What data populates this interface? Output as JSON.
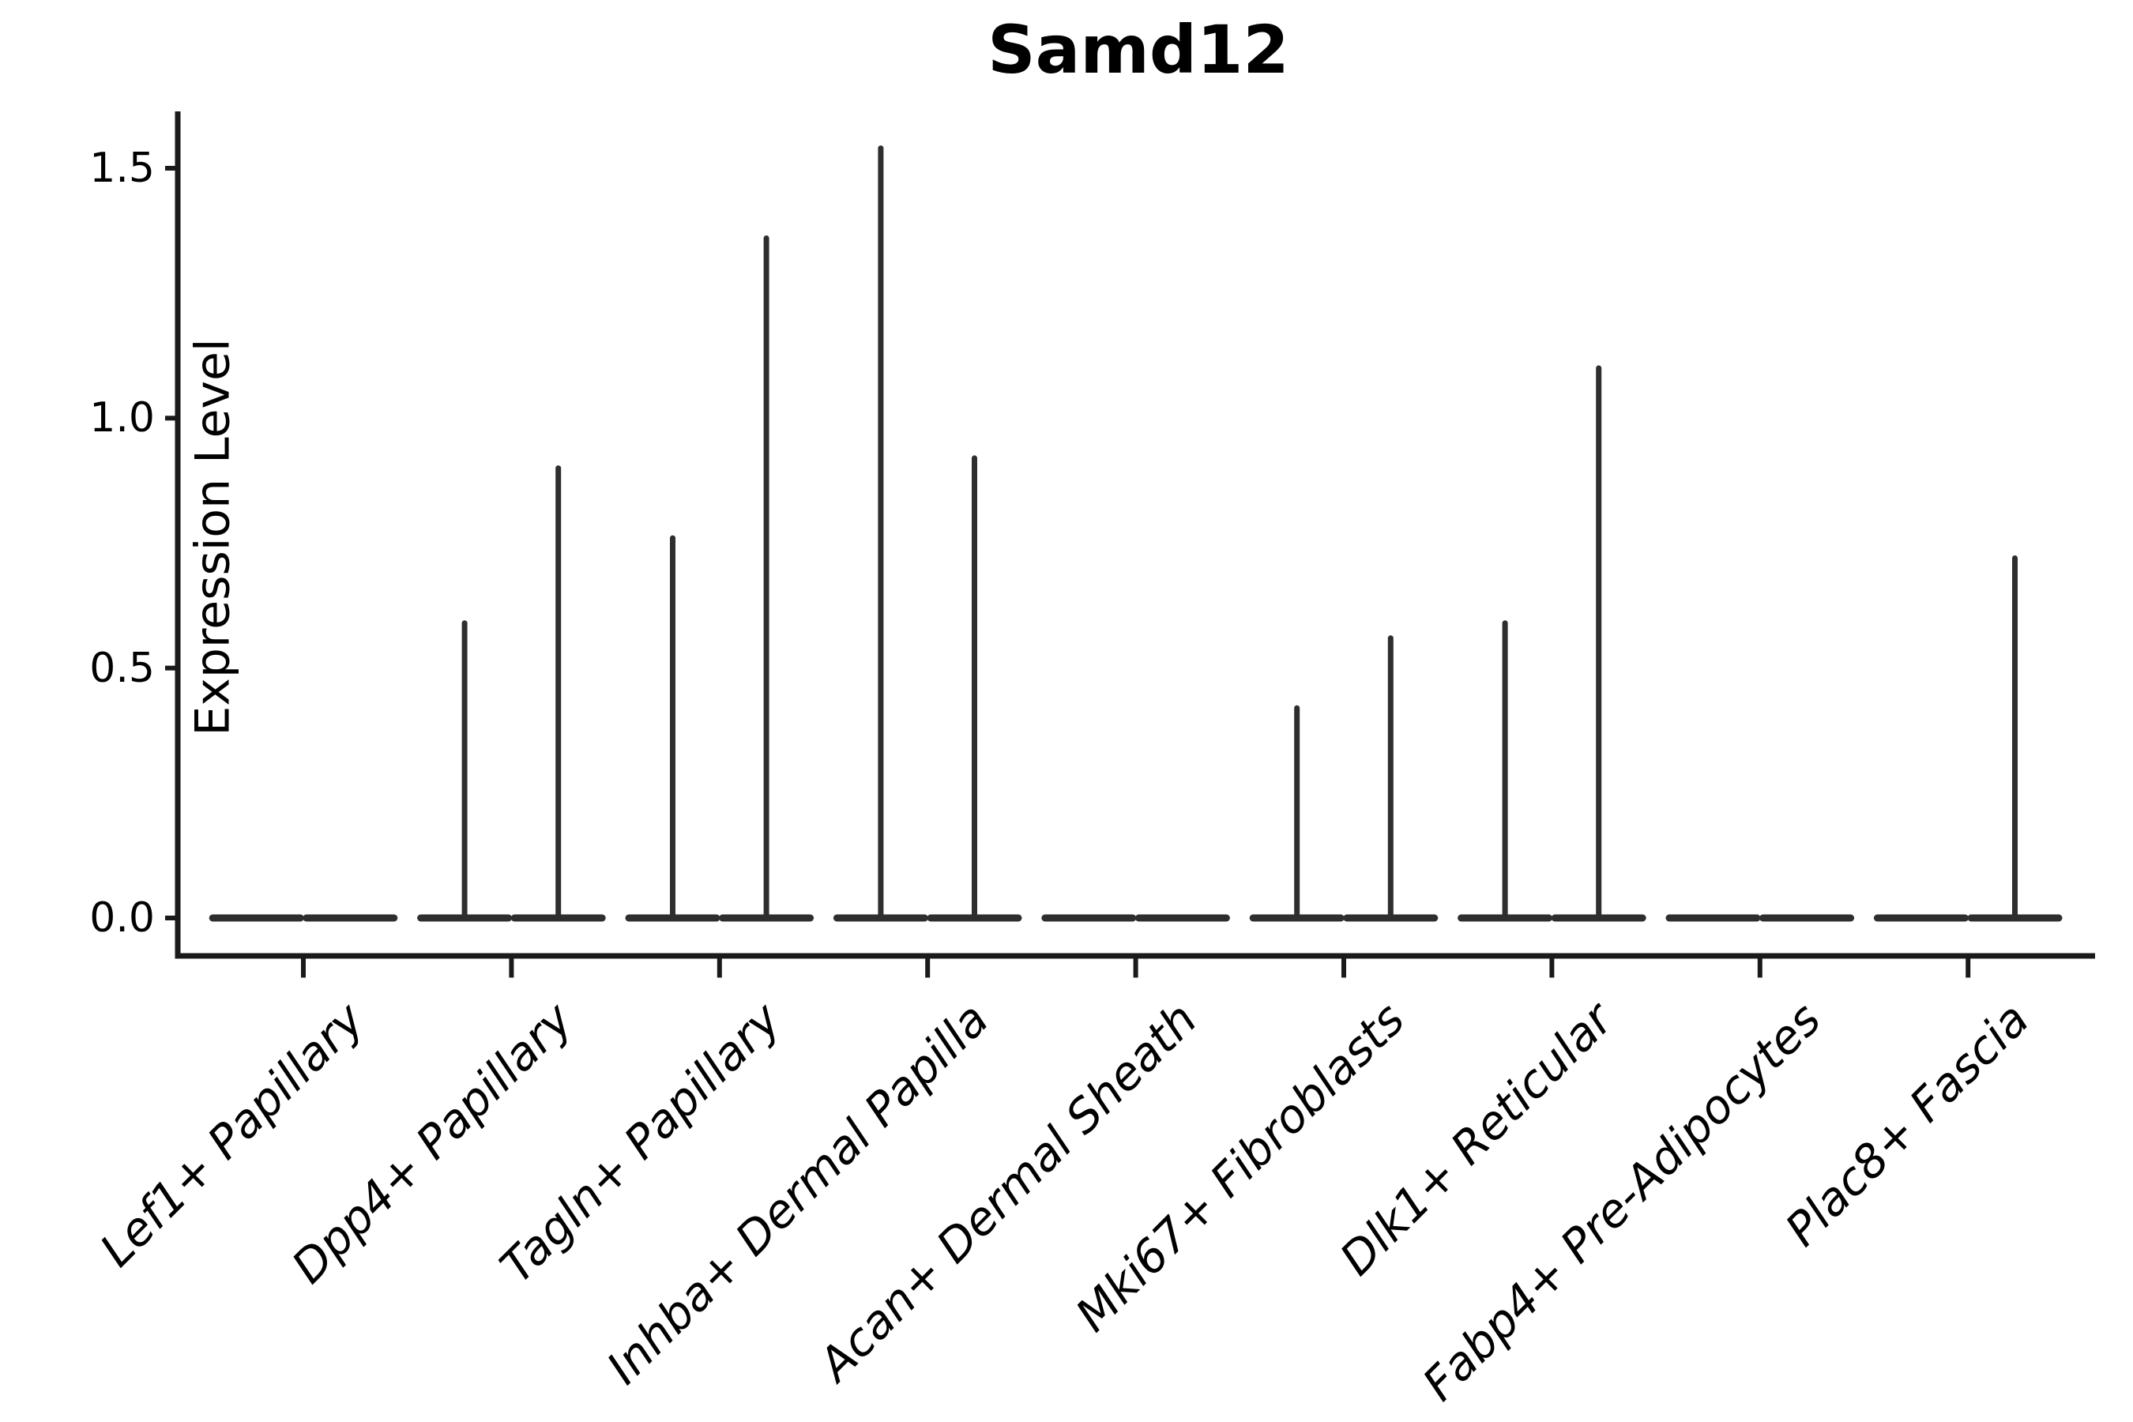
{
  "title": "Samd12",
  "axes": {
    "ylabel": "Expression Level",
    "y_ticks": [
      "0.0",
      "0.5",
      "1.0",
      "1.5"
    ]
  },
  "chart_data": {
    "type": "violin",
    "title": "Samd12",
    "xlabel": "",
    "ylabel": "Expression Level",
    "categories": [
      "Lef1+ Papillary",
      "Dpp4+ Papillary",
      "Tagln+ Papillary",
      "Inhba+ Dermal Papilla",
      "Acan+ Dermal Sheath",
      "Mki67+ Fibroblasts",
      "Dlk1+ Reticular",
      "Fabp4+ Pre-Adipocytes",
      "Plac8+ Fascia"
    ],
    "y_tick_values": [
      0.0,
      0.5,
      1.0,
      1.5
    ],
    "y_tick_labels": [
      "0.0",
      "0.5",
      "1.0",
      "1.5"
    ],
    "ylim": [
      -0.08,
      1.62
    ],
    "grid": false,
    "legend": "none",
    "violin_style": "flat body at 0 with thin vertical max-expression spikes; two sub-violins per category",
    "series": [
      {
        "name": "left sub-violin max expression",
        "values": [
          0,
          0.59,
          0.76,
          1.54,
          0,
          0.42,
          0.59,
          0,
          0
        ]
      },
      {
        "name": "right sub-violin max expression",
        "values": [
          0,
          0.9,
          1.36,
          0.92,
          0,
          0.56,
          1.1,
          0,
          0.72
        ]
      }
    ],
    "colors": {
      "violin_line": "#2e2e2e",
      "axis_line": "#1a1a1a",
      "text": "#000000",
      "background": "#ffffff"
    }
  }
}
